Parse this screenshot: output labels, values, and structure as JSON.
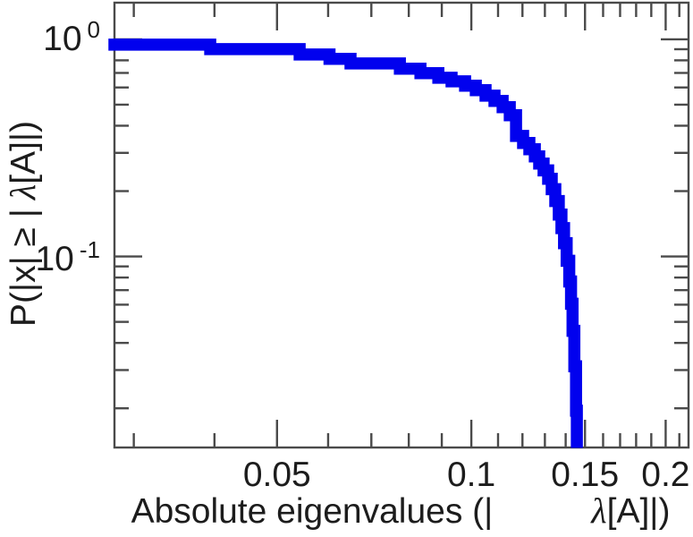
{
  "colors": {
    "background": "#ffffff",
    "curve": "#0101ee",
    "axis": "#4a4a4a",
    "text": "#1c1c1c"
  },
  "chart_data": {
    "type": "line",
    "style": "empirical-step-survival-function",
    "title": "",
    "xscale": "log",
    "yscale": "log",
    "xlim": [
      0.028,
      0.217
    ],
    "ylim": [
      0.0132,
      1.474
    ],
    "grid": "off",
    "legend": "none",
    "xlabel": {
      "prefix": "Absolute eigenvalues (|",
      "lambda": "λ",
      "suffix": "[A]|)"
    },
    "ylabel": {
      "prefix": "P(|x| ≥ |",
      "lambda": "λ",
      "suffix": "[A]|)"
    },
    "x_ticks": {
      "major": [
        0.05,
        0.1,
        0.15,
        0.2
      ],
      "labels": [
        "0.05",
        "0.1",
        "0.15",
        "0.2"
      ],
      "minor": [
        0.03,
        0.04,
        0.06,
        0.07,
        0.08,
        0.09,
        0.11,
        0.12,
        0.13,
        0.14,
        0.16,
        0.17,
        0.18,
        0.19,
        0.21
      ]
    },
    "y_ticks": {
      "major": [
        1,
        0.1
      ],
      "labels": [
        {
          "base": "10",
          "exp": "0"
        },
        {
          "base": "10",
          "exp": "-1"
        }
      ],
      "minor": [
        0.9,
        0.8,
        0.7,
        0.6,
        0.5,
        0.4,
        0.3,
        0.2,
        0.09,
        0.08,
        0.07,
        0.06,
        0.05,
        0.04,
        0.03,
        0.02
      ]
    },
    "series": [
      {
        "name": "eigenvalue-ccdf",
        "color": "#0101ee",
        "line_width": 13.5,
        "start": [
          0.028,
          0.945
        ],
        "steps": [
          [
            0.0394,
            0.901
          ],
          [
            0.0542,
            0.851
          ],
          [
            0.0603,
            0.812
          ],
          [
            0.065,
            0.774
          ],
          [
            0.0775,
            0.732
          ],
          [
            0.0834,
            0.698
          ],
          [
            0.0889,
            0.665
          ],
          [
            0.0932,
            0.64
          ],
          [
            0.0978,
            0.611
          ],
          [
            0.1016,
            0.583
          ],
          [
            0.1052,
            0.55
          ],
          [
            0.1086,
            0.52
          ],
          [
            0.1118,
            0.487
          ],
          [
            0.1147,
            0.447
          ],
          [
            0.1173,
            0.359
          ],
          [
            0.1203,
            0.333
          ],
          [
            0.123,
            0.312
          ],
          [
            0.1254,
            0.289
          ],
          [
            0.1274,
            0.268
          ],
          [
            0.1294,
            0.249
          ],
          [
            0.1315,
            0.228
          ],
          [
            0.1332,
            0.204
          ],
          [
            0.1349,
            0.18
          ],
          [
            0.1366,
            0.156
          ],
          [
            0.1379,
            0.135
          ],
          [
            0.1392,
            0.115
          ],
          [
            0.1405,
            0.0955
          ],
          [
            0.1418,
            0.0767
          ],
          [
            0.1427,
            0.0606
          ],
          [
            0.1435,
            0.0455
          ],
          [
            0.1444,
            0.0312
          ],
          [
            0.1453,
            0.0195
          ],
          [
            0.1457,
            0.0103
          ]
        ]
      }
    ]
  }
}
